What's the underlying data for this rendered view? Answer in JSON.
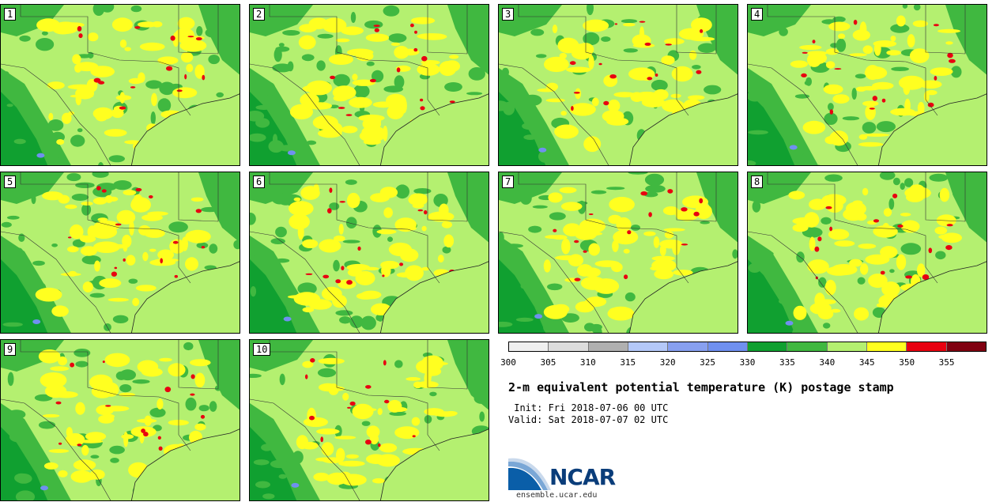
{
  "panels": [
    {
      "label": "1"
    },
    {
      "label": "2"
    },
    {
      "label": "3"
    },
    {
      "label": "4"
    },
    {
      "label": "5"
    },
    {
      "label": "6"
    },
    {
      "label": "7"
    },
    {
      "label": "8"
    },
    {
      "label": "9"
    },
    {
      "label": "10"
    }
  ],
  "colorbar": {
    "colors": [
      "#f0f0f0",
      "#dcdcdc",
      "#b0b0b0",
      "#b4c8f8",
      "#88a0f0",
      "#7090f0",
      "#10a030",
      "#40b840",
      "#b4f070",
      "#ffff20",
      "#e80010",
      "#800010"
    ],
    "ticks": [
      "300",
      "305",
      "310",
      "315",
      "320",
      "325",
      "330",
      "335",
      "340",
      "345",
      "350",
      "355"
    ]
  },
  "title": "2-m equivalent potential temperature (K) postage stamp",
  "init": " Init: Fri 2018-07-06 00 UTC",
  "valid": "Valid: Sat 2018-07-07 02 UTC",
  "logo": {
    "text": "NCAR",
    "url": "ensemble.ucar.edu"
  },
  "map_colors": {
    "base": "#b4f070",
    "green": "#40b840",
    "darkgreen": "#10a030",
    "yellow": "#ffff20",
    "red": "#e80010",
    "blue": "#7090f0"
  }
}
